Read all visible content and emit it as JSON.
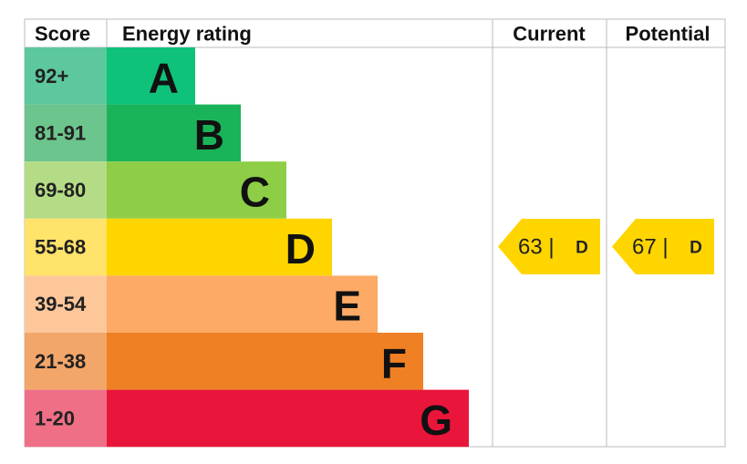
{
  "header": {
    "score": "Score",
    "rating": "Energy rating",
    "current": "Current",
    "potential": "Potential"
  },
  "bands": [
    {
      "score": "92+",
      "letter": "A"
    },
    {
      "score": "81-91",
      "letter": "B"
    },
    {
      "score": "69-80",
      "letter": "C"
    },
    {
      "score": "55-68",
      "letter": "D"
    },
    {
      "score": "39-54",
      "letter": "E"
    },
    {
      "score": "21-38",
      "letter": "F"
    },
    {
      "score": "1-20",
      "letter": "G"
    }
  ],
  "current": {
    "label": "63 |",
    "letter": "D"
  },
  "potential": {
    "label": "67 |",
    "letter": "D"
  }
}
